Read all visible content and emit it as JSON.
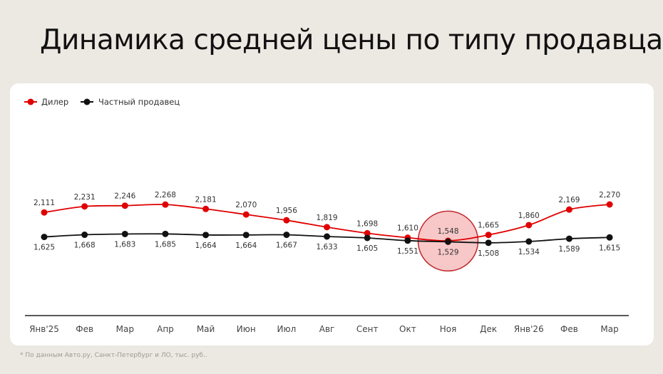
{
  "title": "Динамика средней цены по типу продавца",
  "footnote": "* По данным Авто.ру, Санкт-Петербург и ЛО, тыс. руб..",
  "chart_data": {
    "type": "line",
    "categories": [
      "Янв'25",
      "Фев",
      "Мар",
      "Апр",
      "Май",
      "Июн",
      "Июл",
      "Авг",
      "Сент",
      "Окт",
      "Ноя",
      "Дек",
      "Янв'26",
      "Фев",
      "Мар"
    ],
    "series": [
      {
        "name": "Дилер",
        "color": "#e00000",
        "values": [
          2111,
          2231,
          2246,
          2268,
          2181,
          2070,
          1956,
          1819,
          1698,
          1610,
          1548,
          1665,
          1860,
          2169,
          2270
        ]
      },
      {
        "name": "Частный продавец",
        "color": "#111111",
        "values": [
          1625,
          1668,
          1683,
          1685,
          1664,
          1664,
          1667,
          1633,
          1605,
          1551,
          1529,
          1508,
          1534,
          1589,
          1615
        ]
      }
    ],
    "legend_position": "top-left",
    "grid": false,
    "y_axis_visible": false,
    "highlight": {
      "category": "Ноя",
      "shape": "circle",
      "color": "#f5b5b5"
    }
  }
}
